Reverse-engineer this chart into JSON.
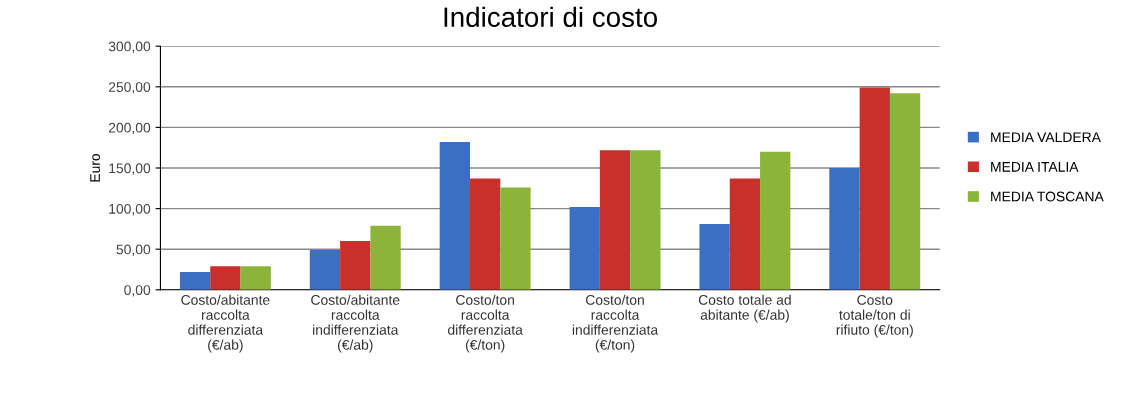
{
  "chart_data": {
    "type": "bar",
    "title": "Indicatori di costo",
    "ylabel": "Euro",
    "categories": [
      "Costo/abitante\nraccolta\ndifferenziata\n(€/ab)",
      "Costo/abitante\nraccolta\nindifferenziata\n(€/ab)",
      "Costo/ton\nraccolta\ndifferenziata\n(€/ton)",
      "Costo/ton\nraccolta\nindifferenziata\n(€/ton)",
      "Costo totale ad\nabitante (€/ab)",
      "Costo\ntotale/ton di\nrifiuto (€/ton)"
    ],
    "series": [
      {
        "name": "MEDIA VALDERA",
        "color": "#3a6fc4",
        "values": [
          22,
          49,
          182,
          102,
          81,
          150
        ]
      },
      {
        "name": "MEDIA ITALIA",
        "color": "#c9302c",
        "values": [
          29,
          60,
          137,
          172,
          137,
          249
        ]
      },
      {
        "name": "MEDIA TOSCANA",
        "color": "#8db43a",
        "values": [
          29,
          79,
          126,
          172,
          170,
          242
        ]
      }
    ],
    "ylim": [
      0,
      300
    ],
    "yticks": [
      {
        "value": 0,
        "label": "0,00"
      },
      {
        "value": 50,
        "label": "50,00"
      },
      {
        "value": 100,
        "label": "100,00"
      },
      {
        "value": 150,
        "label": "150,00"
      },
      {
        "value": 200,
        "label": "200,00"
      },
      {
        "value": 250,
        "label": "250,00"
      },
      {
        "value": 300,
        "label": "300,00"
      }
    ],
    "grid": "y",
    "legend": "right"
  }
}
